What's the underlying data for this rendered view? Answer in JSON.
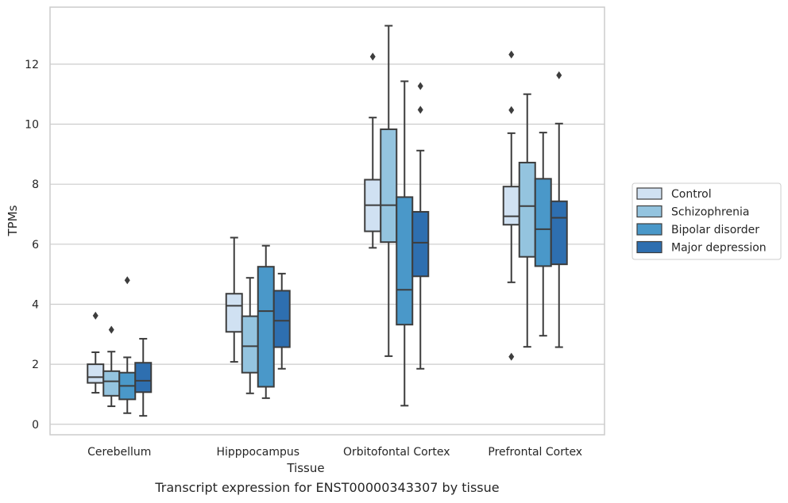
{
  "caption": "Transcript expression for ENST00000343307 by tissue",
  "chart_data": {
    "type": "box",
    "xlabel": "Tissue",
    "ylabel": "TPMs",
    "ylim": [
      -0.35,
      13.9
    ],
    "yticks": [
      0,
      2,
      4,
      6,
      8,
      10,
      12
    ],
    "grid": "horizontal",
    "legend_position": "right",
    "categories": [
      "Cerebellum",
      "Hipppocampus",
      "Orbitofontal Cortex",
      "Prefrontal Cortex"
    ],
    "series": [
      {
        "name": "Control",
        "color": "#d0e1f2",
        "boxes": [
          {
            "whislo": 1.05,
            "q1": 1.38,
            "med": 1.57,
            "q3": 2.0,
            "whishi": 2.4,
            "fliers": [
              3.62
            ]
          },
          {
            "whislo": 2.08,
            "q1": 3.08,
            "med": 3.95,
            "q3": 4.35,
            "whishi": 6.22,
            "fliers": []
          },
          {
            "whislo": 5.88,
            "q1": 6.43,
            "med": 7.3,
            "q3": 8.15,
            "whishi": 10.22,
            "fliers": [
              12.25
            ]
          },
          {
            "whislo": 4.73,
            "q1": 6.65,
            "med": 6.93,
            "q3": 7.92,
            "whishi": 9.7,
            "fliers": [
              12.32,
              10.47,
              2.25
            ]
          }
        ]
      },
      {
        "name": "Schizophrenia",
        "color": "#94c4df",
        "boxes": [
          {
            "whislo": 0.6,
            "q1": 0.95,
            "med": 1.43,
            "q3": 1.77,
            "whishi": 2.42,
            "fliers": [
              3.15
            ]
          },
          {
            "whislo": 1.03,
            "q1": 1.72,
            "med": 2.6,
            "q3": 3.6,
            "whishi": 4.88,
            "fliers": []
          },
          {
            "whislo": 2.27,
            "q1": 6.07,
            "med": 7.3,
            "q3": 9.83,
            "whishi": 13.28,
            "fliers": []
          },
          {
            "whislo": 2.58,
            "q1": 5.58,
            "med": 7.27,
            "q3": 8.72,
            "whishi": 11.0,
            "fliers": []
          }
        ]
      },
      {
        "name": "Bipolar disorder",
        "color": "#4a98c9",
        "boxes": [
          {
            "whislo": 0.37,
            "q1": 0.83,
            "med": 1.28,
            "q3": 1.72,
            "whishi": 2.23,
            "fliers": [
              4.8
            ]
          },
          {
            "whislo": 0.87,
            "q1": 1.25,
            "med": 3.77,
            "q3": 5.25,
            "whishi": 5.95,
            "fliers": []
          },
          {
            "whislo": 0.62,
            "q1": 3.32,
            "med": 4.48,
            "q3": 7.57,
            "whishi": 11.43,
            "fliers": []
          },
          {
            "whislo": 2.95,
            "q1": 5.27,
            "med": 6.5,
            "q3": 8.18,
            "whishi": 9.72,
            "fliers": []
          }
        ]
      },
      {
        "name": "Major depression",
        "color": "#2e6fb0",
        "boxes": [
          {
            "whislo": 0.28,
            "q1": 1.07,
            "med": 1.45,
            "q3": 2.05,
            "whishi": 2.85,
            "fliers": []
          },
          {
            "whislo": 1.85,
            "q1": 2.57,
            "med": 3.45,
            "q3": 4.45,
            "whishi": 5.02,
            "fliers": []
          },
          {
            "whislo": 1.85,
            "q1": 4.93,
            "med": 6.05,
            "q3": 7.08,
            "whishi": 9.12,
            "fliers": [
              11.27,
              10.48
            ]
          },
          {
            "whislo": 2.57,
            "q1": 5.33,
            "med": 6.88,
            "q3": 7.43,
            "whishi": 10.02,
            "fliers": [
              11.63
            ]
          }
        ]
      }
    ]
  }
}
